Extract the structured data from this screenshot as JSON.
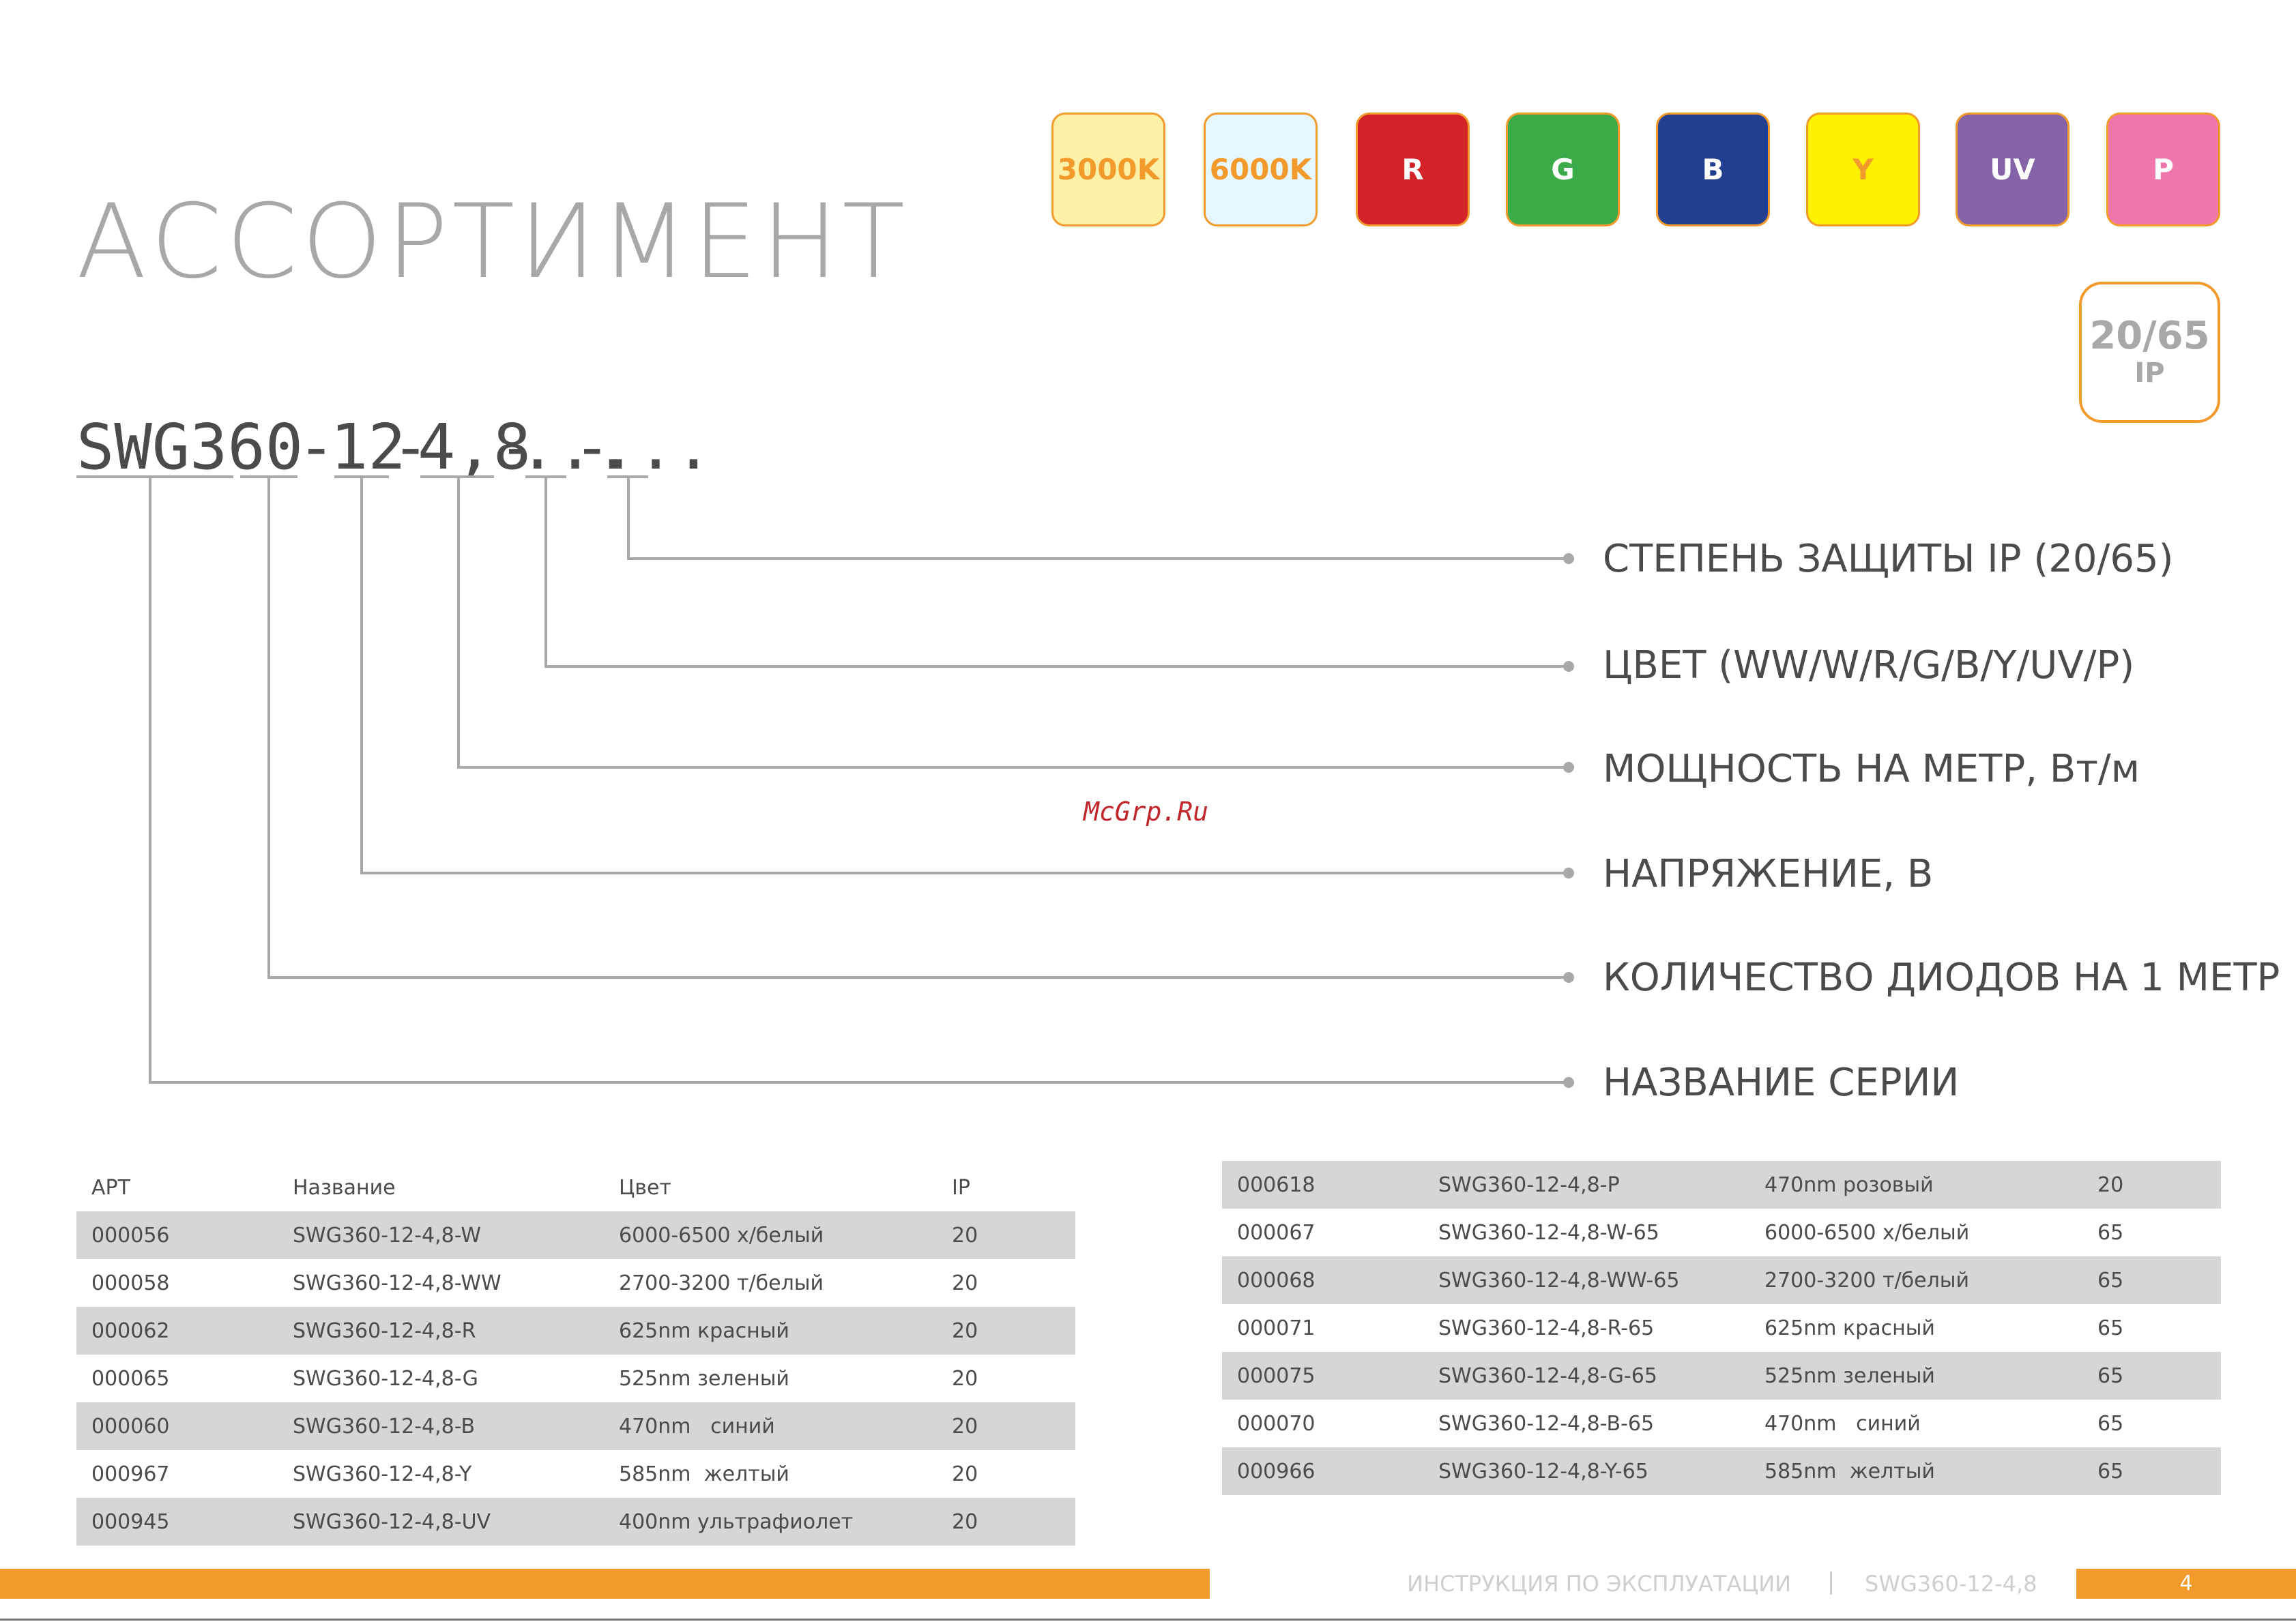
{
  "title": "АССОРТИМЕНТ",
  "swatches": [
    {
      "label": "3000K",
      "bg": "#fdf1a8",
      "fg": "#f29a2b"
    },
    {
      "label": "6000K",
      "bg": "#e6f6fd",
      "fg": "#f29a2b"
    },
    {
      "label": "R",
      "bg": "#d42229",
      "fg": "#ffffff"
    },
    {
      "label": "G",
      "bg": "#3aab48",
      "fg": "#ffffff"
    },
    {
      "label": "B",
      "bg": "#233f8f",
      "fg": "#ffffff"
    },
    {
      "label": "Y",
      "bg": "#fff200",
      "fg": "#f29a2b"
    },
    {
      "label": "UV",
      "bg": "#8563a8",
      "fg": "#ffffff"
    },
    {
      "label": "P",
      "bg": "#ee76aa",
      "fg": "#ffffff"
    }
  ],
  "ip_badge": {
    "value": "20/65",
    "label": "IP"
  },
  "code": {
    "segments": [
      "SWG",
      "360",
      "-",
      "12",
      "-",
      "4,8",
      "-",
      "...",
      "-",
      "..."
    ]
  },
  "legend": [
    "СТЕПЕНЬ ЗАЩИТЫ IP (20/65)",
    "ЦВЕТ (WW/W/R/G/B/Y/UV/P)",
    "МОЩНОСТЬ НА МЕТР, Вт/м",
    "НАПРЯЖЕНИЕ, В",
    "КОЛИЧЕСТВО ДИОДОВ НА 1 МЕТР",
    "НАЗВАНИЕ СЕРИИ"
  ],
  "watermark": "McGrp.Ru",
  "table_left": {
    "headers": [
      "АРТ",
      "Название",
      "Цвет",
      "IP"
    ],
    "rows": [
      [
        "000056",
        "SWG360-12-4,8-W",
        "6000-6500 х/белый",
        "20"
      ],
      [
        "000058",
        "SWG360-12-4,8-WW",
        "2700-3200 т/белый",
        "20"
      ],
      [
        "000062",
        "SWG360-12-4,8-R",
        "625nm красный",
        "20"
      ],
      [
        "000065",
        "SWG360-12-4,8-G",
        "525nm зеленый",
        "20"
      ],
      [
        "000060",
        "SWG360-12-4,8-B",
        "470nm   синий",
        "20"
      ],
      [
        "000967",
        "SWG360-12-4,8-Y",
        "585nm  желтый",
        "20"
      ],
      [
        "000945",
        "SWG360-12-4,8-UV",
        "400nm ультрафиолет",
        "20"
      ]
    ]
  },
  "table_right": {
    "rows": [
      [
        "000618",
        "SWG360-12-4,8-P",
        "470nm розовый",
        "20"
      ],
      [
        "000067",
        "SWG360-12-4,8-W-65",
        "6000-6500 х/белый",
        "65"
      ],
      [
        "000068",
        "SWG360-12-4,8-WW-65",
        "2700-3200 т/белый",
        "65"
      ],
      [
        "000071",
        "SWG360-12-4,8-R-65",
        "625nm красный",
        "65"
      ],
      [
        "000075",
        "SWG360-12-4,8-G-65",
        "525nm зеленый",
        "65"
      ],
      [
        "000070",
        "SWG360-12-4,8-B-65",
        "470nm   синий",
        "65"
      ],
      [
        "000966",
        "SWG360-12-4,8-Y-65",
        "585nm  желтый",
        "65"
      ]
    ]
  },
  "footer": {
    "doc_title": "ИНСТРУКЦИЯ ПО ЭКСПЛУАТАЦИИ",
    "product": "SWG360-12-4,8",
    "page": "4"
  }
}
